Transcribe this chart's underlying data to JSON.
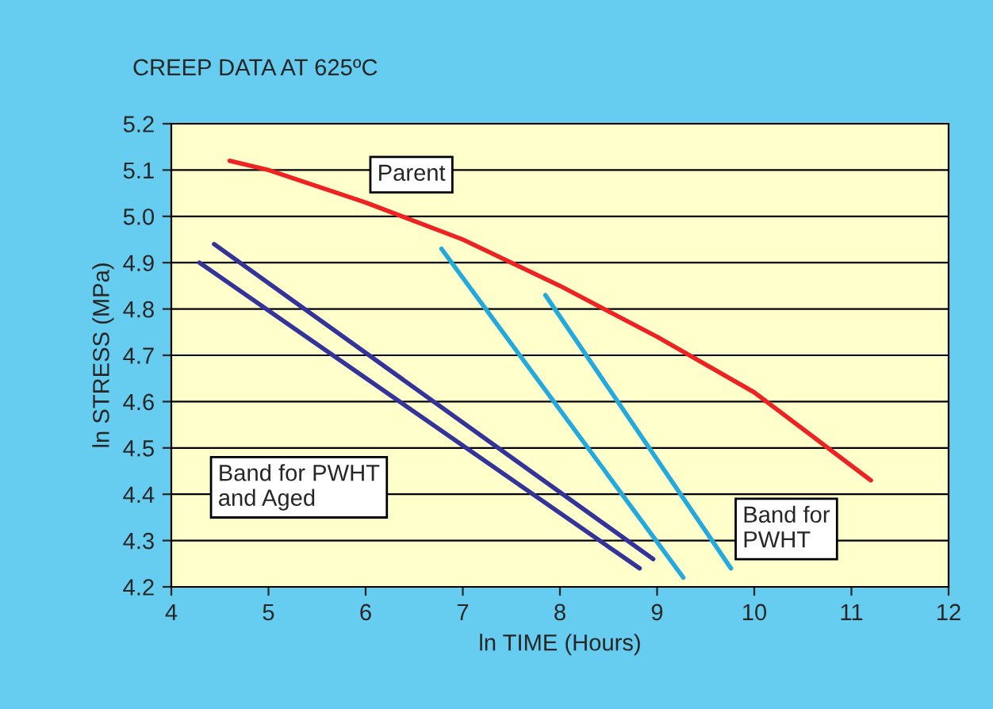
{
  "chart_data": {
    "type": "line",
    "title": "CREEP DATA AT 625ºC",
    "xlabel": "ln TIME (Hours)",
    "ylabel": "ln STRESS (MPa)",
    "xlim": [
      4,
      12
    ],
    "xticks": [
      4,
      5,
      6,
      7,
      8,
      9,
      10,
      11,
      12
    ],
    "ylim": [
      4.2,
      5.2
    ],
    "yticks": [
      {
        "value": 4.2,
        "label": "4.2"
      },
      {
        "value": 4.3,
        "label": "4.3"
      },
      {
        "value": 4.4,
        "label": "4.4"
      },
      {
        "value": 4.5,
        "label": "4.5"
      },
      {
        "value": 4.6,
        "label": "4.6"
      },
      {
        "value": 4.7,
        "label": "4.7"
      },
      {
        "value": 4.8,
        "label": "4.8"
      },
      {
        "value": 4.9,
        "label": "4.9"
      },
      {
        "value": 5.0,
        "label": "5.0"
      },
      {
        "value": 5.1,
        "label": "5.1"
      },
      {
        "value": 5.2,
        "label": "5.2"
      }
    ],
    "grid": "y",
    "marker": "none",
    "line_style": "solid",
    "series": [
      {
        "color": "#ee2222",
        "x": [
          4.6,
          5.0,
          6.0,
          7.0,
          8.0,
          9.0,
          10.0,
          11.2
        ],
        "values": [
          5.12,
          5.1,
          5.03,
          4.95,
          4.85,
          4.74,
          4.62,
          4.43
        ]
      },
      {
        "color": "#333399",
        "x": [
          4.44,
          8.96
        ],
        "values": [
          4.94,
          4.26
        ]
      },
      {
        "color": "#333399",
        "x": [
          4.29,
          8.82
        ],
        "values": [
          4.9,
          4.24
        ]
      },
      {
        "color": "#22aadd",
        "x": [
          6.78,
          9.27
        ],
        "values": [
          4.93,
          4.22
        ]
      },
      {
        "color": "#22aadd",
        "x": [
          7.85,
          9.76
        ],
        "values": [
          4.83,
          4.24
        ]
      }
    ],
    "annotations": [
      "Parent",
      "Band for PWHT\nand Aged",
      "Band for\nPWHT"
    ]
  }
}
